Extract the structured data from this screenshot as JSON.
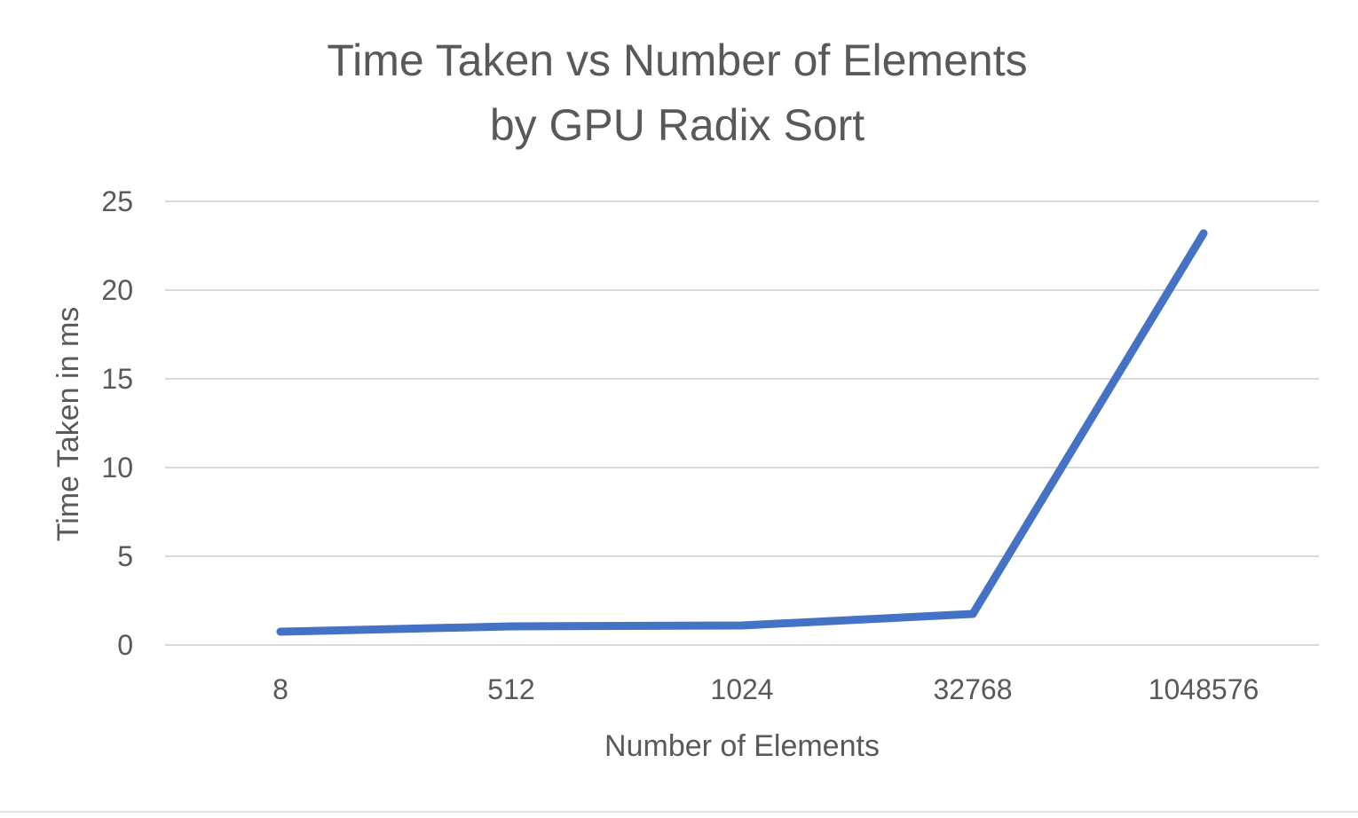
{
  "chart_data": {
    "type": "line",
    "title": [
      "Time Taken vs Number of Elements",
      "by GPU Radix Sort"
    ],
    "xlabel": "Number of Elements",
    "ylabel": "Time Taken in ms",
    "categories": [
      "8",
      "512",
      "1024",
      "32768",
      "1048576"
    ],
    "series": [
      {
        "values": [
          0.75,
          1.05,
          1.1,
          1.75,
          23.2
        ]
      }
    ],
    "ylim": [
      0,
      25
    ],
    "yticks": [
      0,
      5,
      10,
      15,
      20,
      25
    ],
    "grid": true,
    "legend": "none",
    "colors": {
      "line": "#4472c4",
      "grid": "#d9d9d9",
      "text": "#595959"
    }
  }
}
